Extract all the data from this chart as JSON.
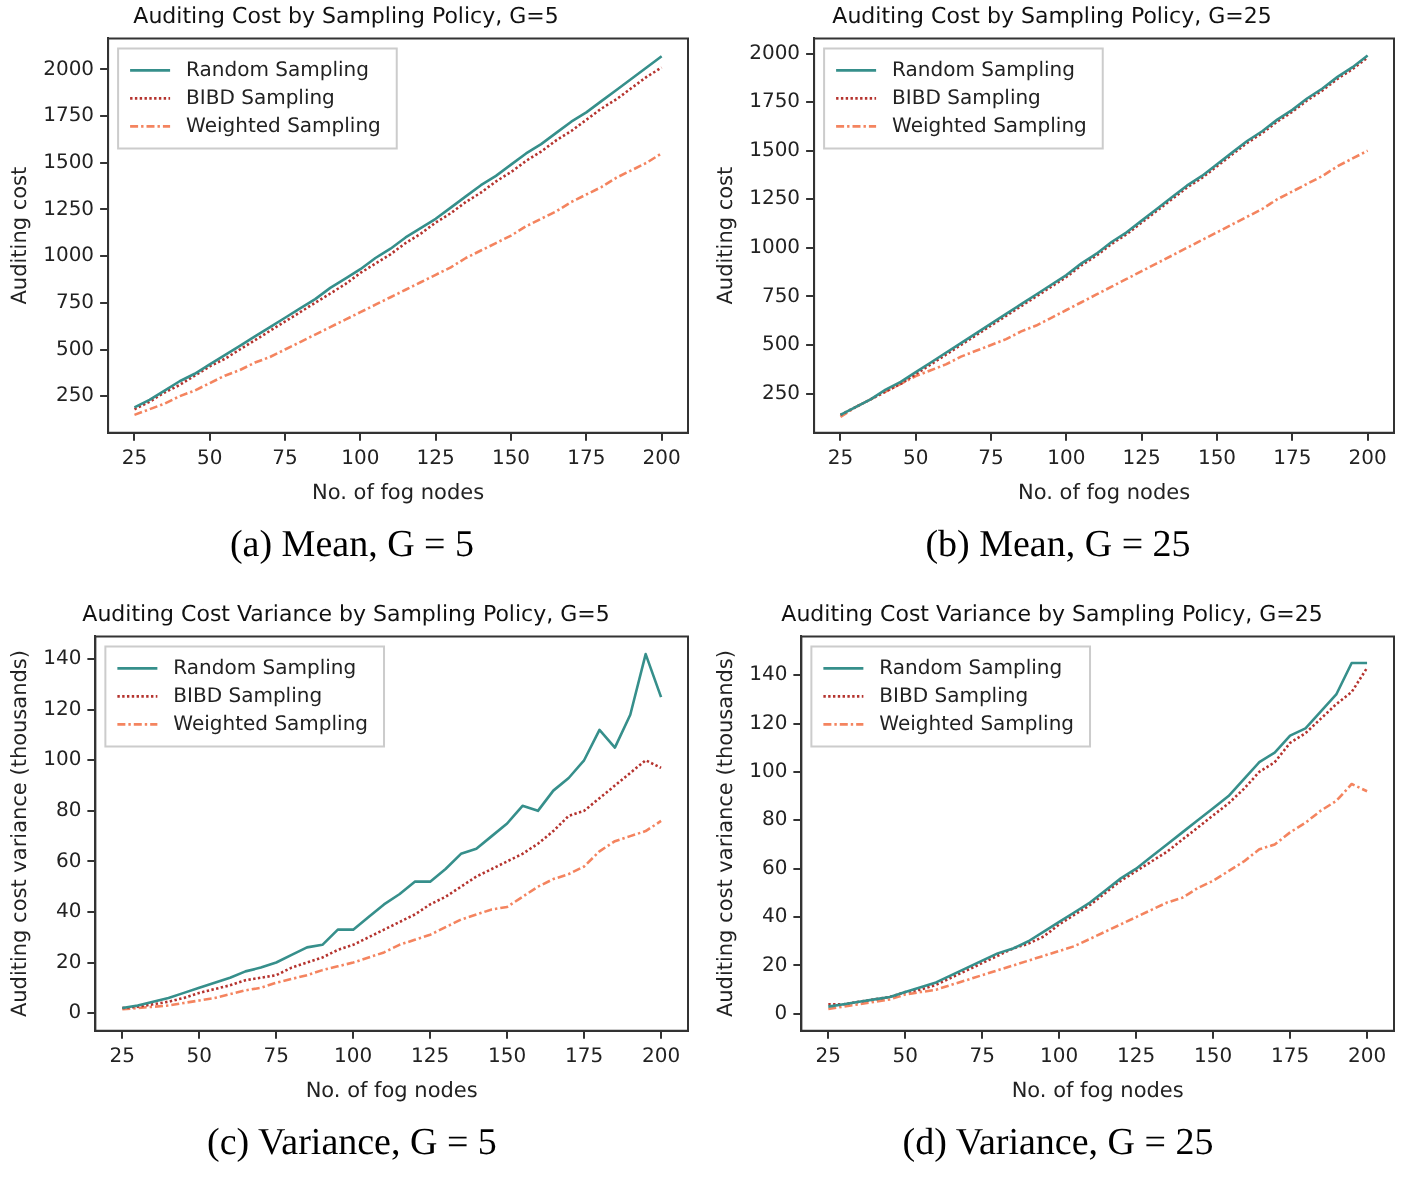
{
  "chart_data": [
    {
      "type": "line",
      "title": "Auditing Cost by Sampling Policy, G=5",
      "xlabel": "No. of fog nodes",
      "ylabel": "Auditing cost",
      "annotations": [
        "(a) Mean, G = 5"
      ],
      "legend": "top left",
      "grid": false,
      "marker": "none",
      "x": [
        25,
        30,
        35,
        40,
        45,
        50,
        55,
        60,
        65,
        70,
        75,
        80,
        85,
        90,
        95,
        100,
        105,
        110,
        115,
        120,
        125,
        130,
        135,
        140,
        145,
        150,
        155,
        160,
        165,
        170,
        175,
        180,
        185,
        190,
        195,
        200
      ],
      "xlim": [
        16.25,
        208.75
      ],
      "xticks": [
        25,
        50,
        75,
        100,
        125,
        150,
        175,
        200
      ],
      "ylim": [
        54,
        2166
      ],
      "yticks": [
        250,
        500,
        750,
        1000,
        1250,
        1500,
        1750,
        2000
      ],
      "series": [
        {
          "name": "Random Sampling",
          "color": "#368f8b",
          "line_style": "solid",
          "values": [
            190,
            230,
            280,
            330,
            370,
            420,
            470,
            520,
            570,
            620,
            670,
            720,
            770,
            830,
            880,
            930,
            990,
            1040,
            1100,
            1150,
            1200,
            1260,
            1320,
            1380,
            1430,
            1490,
            1550,
            1600,
            1660,
            1720,
            1770,
            1830,
            1890,
            1950,
            2010,
            2070
          ]
        },
        {
          "name": "BIBD Sampling",
          "color": "#b5332e",
          "line_style": "dotted",
          "values": [
            180,
            220,
            270,
            310,
            360,
            410,
            450,
            500,
            550,
            600,
            650,
            700,
            750,
            800,
            850,
            910,
            960,
            1010,
            1070,
            1120,
            1180,
            1230,
            1290,
            1340,
            1400,
            1450,
            1510,
            1560,
            1620,
            1670,
            1730,
            1790,
            1840,
            1900,
            1960,
            2010
          ]
        },
        {
          "name": "Weighted Sampling",
          "color": "#f4845f",
          "line_style": "dashed",
          "values": [
            150,
            180,
            210,
            250,
            280,
            320,
            360,
            390,
            430,
            460,
            500,
            540,
            580,
            620,
            660,
            700,
            740,
            780,
            820,
            860,
            900,
            940,
            990,
            1030,
            1070,
            1110,
            1160,
            1200,
            1240,
            1290,
            1330,
            1370,
            1420,
            1460,
            1500,
            1550
          ]
        }
      ]
    },
    {
      "type": "line",
      "title": "Auditing Cost by Sampling Policy, G=25",
      "xlabel": "No. of fog nodes",
      "ylabel": "Auditing cost",
      "annotations": [
        "(b) Mean, G = 25"
      ],
      "legend": "top left",
      "grid": false,
      "marker": "none",
      "x": [
        25,
        30,
        35,
        40,
        45,
        50,
        55,
        60,
        65,
        70,
        75,
        80,
        85,
        90,
        95,
        100,
        105,
        110,
        115,
        120,
        125,
        130,
        135,
        140,
        145,
        150,
        155,
        160,
        165,
        170,
        175,
        180,
        185,
        190,
        195,
        200
      ],
      "xlim": [
        16.25,
        208.75
      ],
      "xticks": [
        25,
        50,
        75,
        100,
        125,
        150,
        175,
        200
      ],
      "ylim": [
        48,
        2078
      ],
      "yticks": [
        250,
        500,
        750,
        1000,
        1250,
        1500,
        1750,
        2000
      ],
      "series": [
        {
          "name": "Random Sampling",
          "color": "#368f8b",
          "line_style": "solid",
          "values": [
            140,
            180,
            220,
            270,
            310,
            360,
            410,
            460,
            510,
            560,
            610,
            660,
            710,
            760,
            810,
            860,
            920,
            970,
            1030,
            1080,
            1140,
            1200,
            1260,
            1320,
            1370,
            1430,
            1490,
            1550,
            1600,
            1660,
            1710,
            1770,
            1820,
            1880,
            1930,
            1990
          ]
        },
        {
          "name": "BIBD Sampling",
          "color": "#b5332e",
          "line_style": "dotted",
          "values": [
            140,
            180,
            220,
            260,
            300,
            350,
            400,
            450,
            500,
            550,
            600,
            650,
            700,
            750,
            800,
            850,
            910,
            960,
            1020,
            1070,
            1130,
            1190,
            1250,
            1310,
            1360,
            1420,
            1480,
            1540,
            1590,
            1650,
            1700,
            1760,
            1810,
            1870,
            1920,
            1980
          ]
        },
        {
          "name": "Weighted Sampling",
          "color": "#f4845f",
          "line_style": "dashed",
          "values": [
            130,
            180,
            220,
            260,
            300,
            340,
            370,
            400,
            440,
            470,
            500,
            530,
            570,
            600,
            640,
            680,
            720,
            760,
            800,
            840,
            880,
            920,
            960,
            1000,
            1040,
            1080,
            1120,
            1160,
            1200,
            1250,
            1290,
            1330,
            1370,
            1420,
            1460,
            1500
          ]
        }
      ]
    },
    {
      "type": "line",
      "title": "Auditing Cost Variance by Sampling Policy, G=5",
      "xlabel": "No. of fog nodes",
      "ylabel": "Auditing cost variance (thousands)",
      "annotations": [
        "(c) Variance, G = 5"
      ],
      "legend": "top left",
      "grid": false,
      "marker": "none",
      "x": [
        25,
        30,
        35,
        40,
        45,
        50,
        55,
        60,
        65,
        70,
        75,
        80,
        85,
        90,
        95,
        100,
        105,
        110,
        115,
        120,
        125,
        130,
        135,
        140,
        145,
        150,
        155,
        160,
        165,
        170,
        175,
        180,
        185,
        190,
        195,
        200
      ],
      "xlim": [
        16.25,
        208.75
      ],
      "xticks": [
        25,
        50,
        75,
        100,
        125,
        150,
        175,
        200
      ],
      "ylim": [
        -7,
        149
      ],
      "yticks": [
        0,
        20,
        40,
        60,
        80,
        100,
        120,
        140
      ],
      "series": [
        {
          "name": "Random Sampling",
          "color": "#368f8b",
          "line_style": "solid",
          "values": [
            2,
            3,
            4.5,
            6,
            8,
            10,
            12,
            14,
            16.5,
            18,
            20,
            23,
            26,
            27,
            33,
            33,
            38,
            43,
            47,
            52,
            52,
            57,
            63,
            65,
            70,
            75,
            82,
            80,
            88,
            93,
            100,
            112,
            105,
            118,
            142,
            125
          ]
        },
        {
          "name": "BIBD Sampling",
          "color": "#b5332e",
          "line_style": "dotted",
          "values": [
            2,
            2.5,
            3.5,
            4.5,
            6,
            8,
            9.5,
            11,
            13,
            14,
            15,
            18,
            20,
            22,
            25,
            27,
            30,
            33,
            36,
            39,
            43,
            46,
            50,
            54,
            57,
            60,
            63,
            67,
            72,
            78,
            80,
            85,
            90,
            95,
            100,
            97
          ]
        },
        {
          "name": "Weighted Sampling",
          "color": "#f4845f",
          "line_style": "dashed",
          "values": [
            1.5,
            2,
            2.5,
            3,
            4,
            5,
            6,
            7.5,
            9,
            10,
            12,
            13.5,
            15,
            17,
            18.5,
            20,
            22,
            24,
            27,
            29,
            31,
            34,
            37,
            39,
            41,
            42,
            46,
            50,
            53,
            55,
            58,
            64,
            68,
            70,
            72,
            76
          ]
        }
      ]
    },
    {
      "type": "line",
      "title": "Auditing Cost Variance by Sampling Policy, G=25",
      "xlabel": "No. of fog nodes",
      "ylabel": "Auditing cost variance (thousands)",
      "annotations": [
        "(d) Variance, G = 25"
      ],
      "legend": "top left",
      "grid": false,
      "marker": "none",
      "x": [
        25,
        30,
        35,
        40,
        45,
        50,
        55,
        60,
        65,
        70,
        75,
        80,
        85,
        90,
        95,
        100,
        105,
        110,
        115,
        120,
        125,
        130,
        135,
        140,
        145,
        150,
        155,
        160,
        165,
        170,
        175,
        180,
        185,
        190,
        195,
        200
      ],
      "xlim": [
        16.25,
        208.75
      ],
      "xticks": [
        25,
        50,
        75,
        100,
        125,
        150,
        175,
        200
      ],
      "ylim": [
        -7,
        156
      ],
      "yticks": [
        0,
        20,
        40,
        60,
        80,
        100,
        120,
        140
      ],
      "series": [
        {
          "name": "Random Sampling",
          "color": "#368f8b",
          "line_style": "solid",
          "values": [
            3,
            4,
            5,
            6,
            7,
            9,
            11,
            13,
            16,
            19,
            22,
            25,
            27,
            30,
            34,
            38,
            42,
            46,
            51,
            56,
            60,
            65,
            70,
            75,
            80,
            85,
            90,
            97,
            104,
            108,
            115,
            118,
            125,
            132,
            145,
            145
          ]
        },
        {
          "name": "BIBD Sampling",
          "color": "#b5332e",
          "line_style": "dotted",
          "values": [
            4,
            4,
            5,
            6,
            7,
            9,
            10,
            12,
            15,
            18,
            21,
            24,
            27,
            29,
            32,
            37,
            41,
            45,
            50,
            55,
            59,
            63,
            67,
            72,
            77,
            82,
            87,
            93,
            100,
            104,
            112,
            116,
            122,
            128,
            133,
            143
          ]
        },
        {
          "name": "Weighted Sampling",
          "color": "#f4845f",
          "line_style": "dashed",
          "values": [
            2,
            3,
            4,
            5,
            6,
            8,
            9,
            10,
            12,
            14,
            16,
            18,
            20,
            22,
            24,
            26,
            28,
            31,
            34,
            37,
            40,
            43,
            46,
            48,
            52,
            55,
            59,
            63,
            68,
            70,
            75,
            79,
            84,
            88,
            95,
            92
          ]
        }
      ]
    }
  ]
}
